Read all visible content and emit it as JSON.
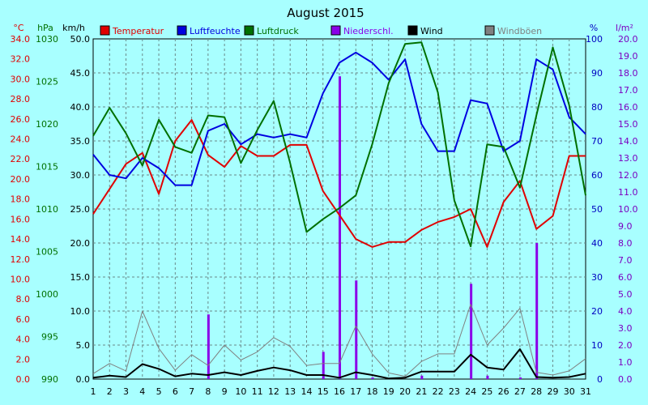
{
  "chart_data": {
    "type": "line",
    "title": "August 2015",
    "x": [
      1,
      2,
      3,
      4,
      5,
      6,
      7,
      8,
      9,
      10,
      11,
      12,
      13,
      14,
      15,
      16,
      17,
      18,
      19,
      20,
      21,
      22,
      23,
      24,
      25,
      26,
      27,
      28,
      29,
      30,
      31
    ],
    "unit_labels": {
      "temp": "°C",
      "pressure": "hPa",
      "wind": "km/h",
      "humidity": "%",
      "rain": "l/m²"
    },
    "axes": {
      "temp": {
        "min": 0,
        "max": 34,
        "step": 2,
        "decimals": 1,
        "color": "#e00000"
      },
      "pressure": {
        "min": 990,
        "max": 1030,
        "step": 5,
        "decimals": 0,
        "color": "#007000"
      },
      "wind": {
        "min": 0,
        "max": 50,
        "step": 5,
        "decimals": 1,
        "color": "#000000"
      },
      "humidity": {
        "min": 0,
        "max": 100,
        "step": 10,
        "decimals": 0,
        "color": "#0000c0"
      },
      "rain": {
        "min": 0,
        "max": 20,
        "step": 1,
        "decimals": 1,
        "color": "#7a00c0"
      }
    },
    "series": [
      {
        "name": "Temperatur",
        "axis": "temp",
        "color": "#e00000",
        "width": 2,
        "values": [
          16.5,
          19.0,
          21.5,
          22.6,
          18.5,
          23.8,
          25.9,
          22.4,
          21.2,
          23.3,
          22.3,
          22.3,
          23.4,
          23.4,
          18.8,
          16.4,
          14.0,
          13.2,
          13.7,
          13.7,
          14.9,
          15.7,
          16.2,
          17.0,
          13.2,
          17.7,
          19.8,
          15.0,
          16.3,
          22.3,
          22.3
        ]
      },
      {
        "name": "Luftfeuchte",
        "axis": "humidity",
        "color": "#0000e0",
        "width": 2,
        "values": [
          66,
          60,
          59,
          65,
          62,
          57,
          57,
          73,
          75,
          69,
          72,
          71,
          72,
          71,
          84,
          93,
          96,
          93,
          88,
          94,
          75,
          67,
          67,
          82,
          81,
          67,
          70,
          94,
          91,
          77,
          72
        ]
      },
      {
        "name": "Luftdruck",
        "axis": "pressure",
        "color": "#007000",
        "width": 2,
        "values": [
          1018.6,
          1021.9,
          1018.9,
          1015.1,
          1020.5,
          1017.3,
          1016.6,
          1021.0,
          1020.8,
          1015.4,
          1019.3,
          1022.7,
          1015.4,
          1007.3,
          1008.8,
          1010.1,
          1011.6,
          1017.6,
          1024.8,
          1029.4,
          1029.6,
          1023.7,
          1011.0,
          1005.6,
          1017.6,
          1017.3,
          1012.5,
          1021.0,
          1029.0,
          1022.2,
          1011.6
        ]
      },
      {
        "name": "Wind",
        "axis": "wind",
        "color": "#000000",
        "width": 2,
        "values": [
          0.2,
          0.5,
          0.3,
          2.2,
          1.5,
          0.4,
          0.8,
          0.6,
          1.0,
          0.6,
          1.2,
          1.7,
          1.3,
          0.6,
          0.6,
          0.2,
          1.0,
          0.6,
          0.1,
          0.2,
          1.1,
          1.1,
          1.1,
          3.6,
          1.7,
          1.4,
          4.4,
          0.3,
          0.2,
          0.3,
          0.8
        ]
      },
      {
        "name": "Windböen",
        "axis": "wind",
        "color": "#808080",
        "width": 1,
        "values": [
          0.8,
          2.3,
          1.2,
          10.0,
          4.5,
          1.3,
          3.6,
          2.0,
          5.0,
          2.8,
          4.0,
          6.1,
          4.8,
          2.0,
          2.3,
          2.3,
          7.8,
          3.7,
          0.9,
          0.4,
          2.6,
          3.7,
          3.7,
          11.0,
          5.0,
          7.5,
          10.4,
          1.0,
          0.6,
          1.2,
          3.0
        ]
      },
      {
        "name": "Niederschl.",
        "axis": "rain",
        "color": "#8a00e8",
        "type": "bar",
        "values": [
          0,
          0,
          0,
          0,
          0,
          0,
          0,
          3.8,
          0,
          0,
          0,
          0,
          0,
          0,
          1.6,
          17.8,
          5.8,
          0.1,
          0,
          0,
          0.2,
          0,
          0,
          5.6,
          0.2,
          0,
          0.1,
          8.0,
          0,
          0,
          0
        ]
      }
    ],
    "legend": [
      "Temperatur",
      "Luftfeuchte",
      "Luftdruck",
      "Niederschl.",
      "Wind",
      "Windböen"
    ],
    "grid": true,
    "legend_position": "top"
  }
}
